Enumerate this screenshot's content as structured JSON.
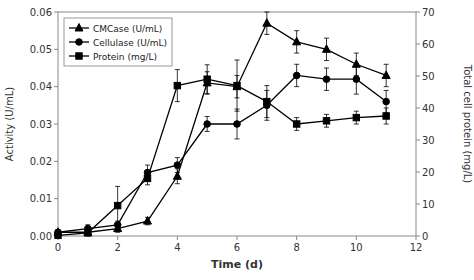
{
  "chart_data": {
    "type": "line",
    "x": [
      0,
      1,
      2,
      3,
      4,
      5,
      6,
      7,
      8,
      9,
      10,
      11
    ],
    "xlabel": "Time (d)",
    "ylabel": "Activity (U/mL)",
    "y2label": "Total cell protein (mg/L)",
    "xlim": [
      0,
      12
    ],
    "xticks": [
      0,
      2,
      4,
      6,
      8,
      10,
      12
    ],
    "ylim": [
      0,
      0.06
    ],
    "yticks": [
      {
        "value": 0,
        "label": "0.00"
      },
      0.01,
      0.02,
      0.03,
      0.04,
      0.05,
      0.06
    ],
    "y2lim": [
      0,
      70
    ],
    "y2ticks": [
      0,
      10,
      20,
      30,
      40,
      50,
      60,
      70
    ],
    "legend": "upper left",
    "grid": false,
    "series": [
      {
        "name": "CMCase (U/mL)",
        "color": "black",
        "marker": "triangle",
        "line_style": "solid",
        "values": [
          0.001,
          0.001,
          0.002,
          0.004,
          0.016,
          0.041,
          0.04,
          0.057,
          0.052,
          0.05,
          0.046,
          0.043
        ],
        "errors": [
          0.0005,
          0.0005,
          0.001,
          0.001,
          0.002,
          0.003,
          0.003,
          0.003,
          0.003,
          0.003,
          0.003,
          0.003
        ]
      },
      {
        "name": "Cellulase (U/mL)",
        "color": "black",
        "marker": "circle",
        "line_style": "solid",
        "values": [
          0.001,
          0.002,
          0.003,
          0.017,
          0.019,
          0.03,
          0.03,
          0.035,
          0.043,
          0.042,
          0.042,
          0.036
        ],
        "errors": [
          0.0005,
          0.001,
          0.001,
          0.002,
          0.002,
          0.002,
          0.004,
          0.004,
          0.003,
          0.003,
          0.004,
          0.003
        ]
      },
      {
        "name": "Protein (mg/L)",
        "color": "black",
        "marker": "square",
        "line_style": "solid",
        "axis": "y2",
        "values": [
          0.2,
          1.0,
          9.5,
          18.0,
          47.0,
          49.0,
          47.0,
          42.0,
          35.0,
          36.0,
          37.0,
          37.5
        ],
        "errors": [
          0.2,
          1.0,
          6.0,
          2.0,
          5.0,
          4.5,
          8.0,
          5.0,
          2.0,
          2.0,
          2.0,
          2.5
        ]
      }
    ]
  }
}
